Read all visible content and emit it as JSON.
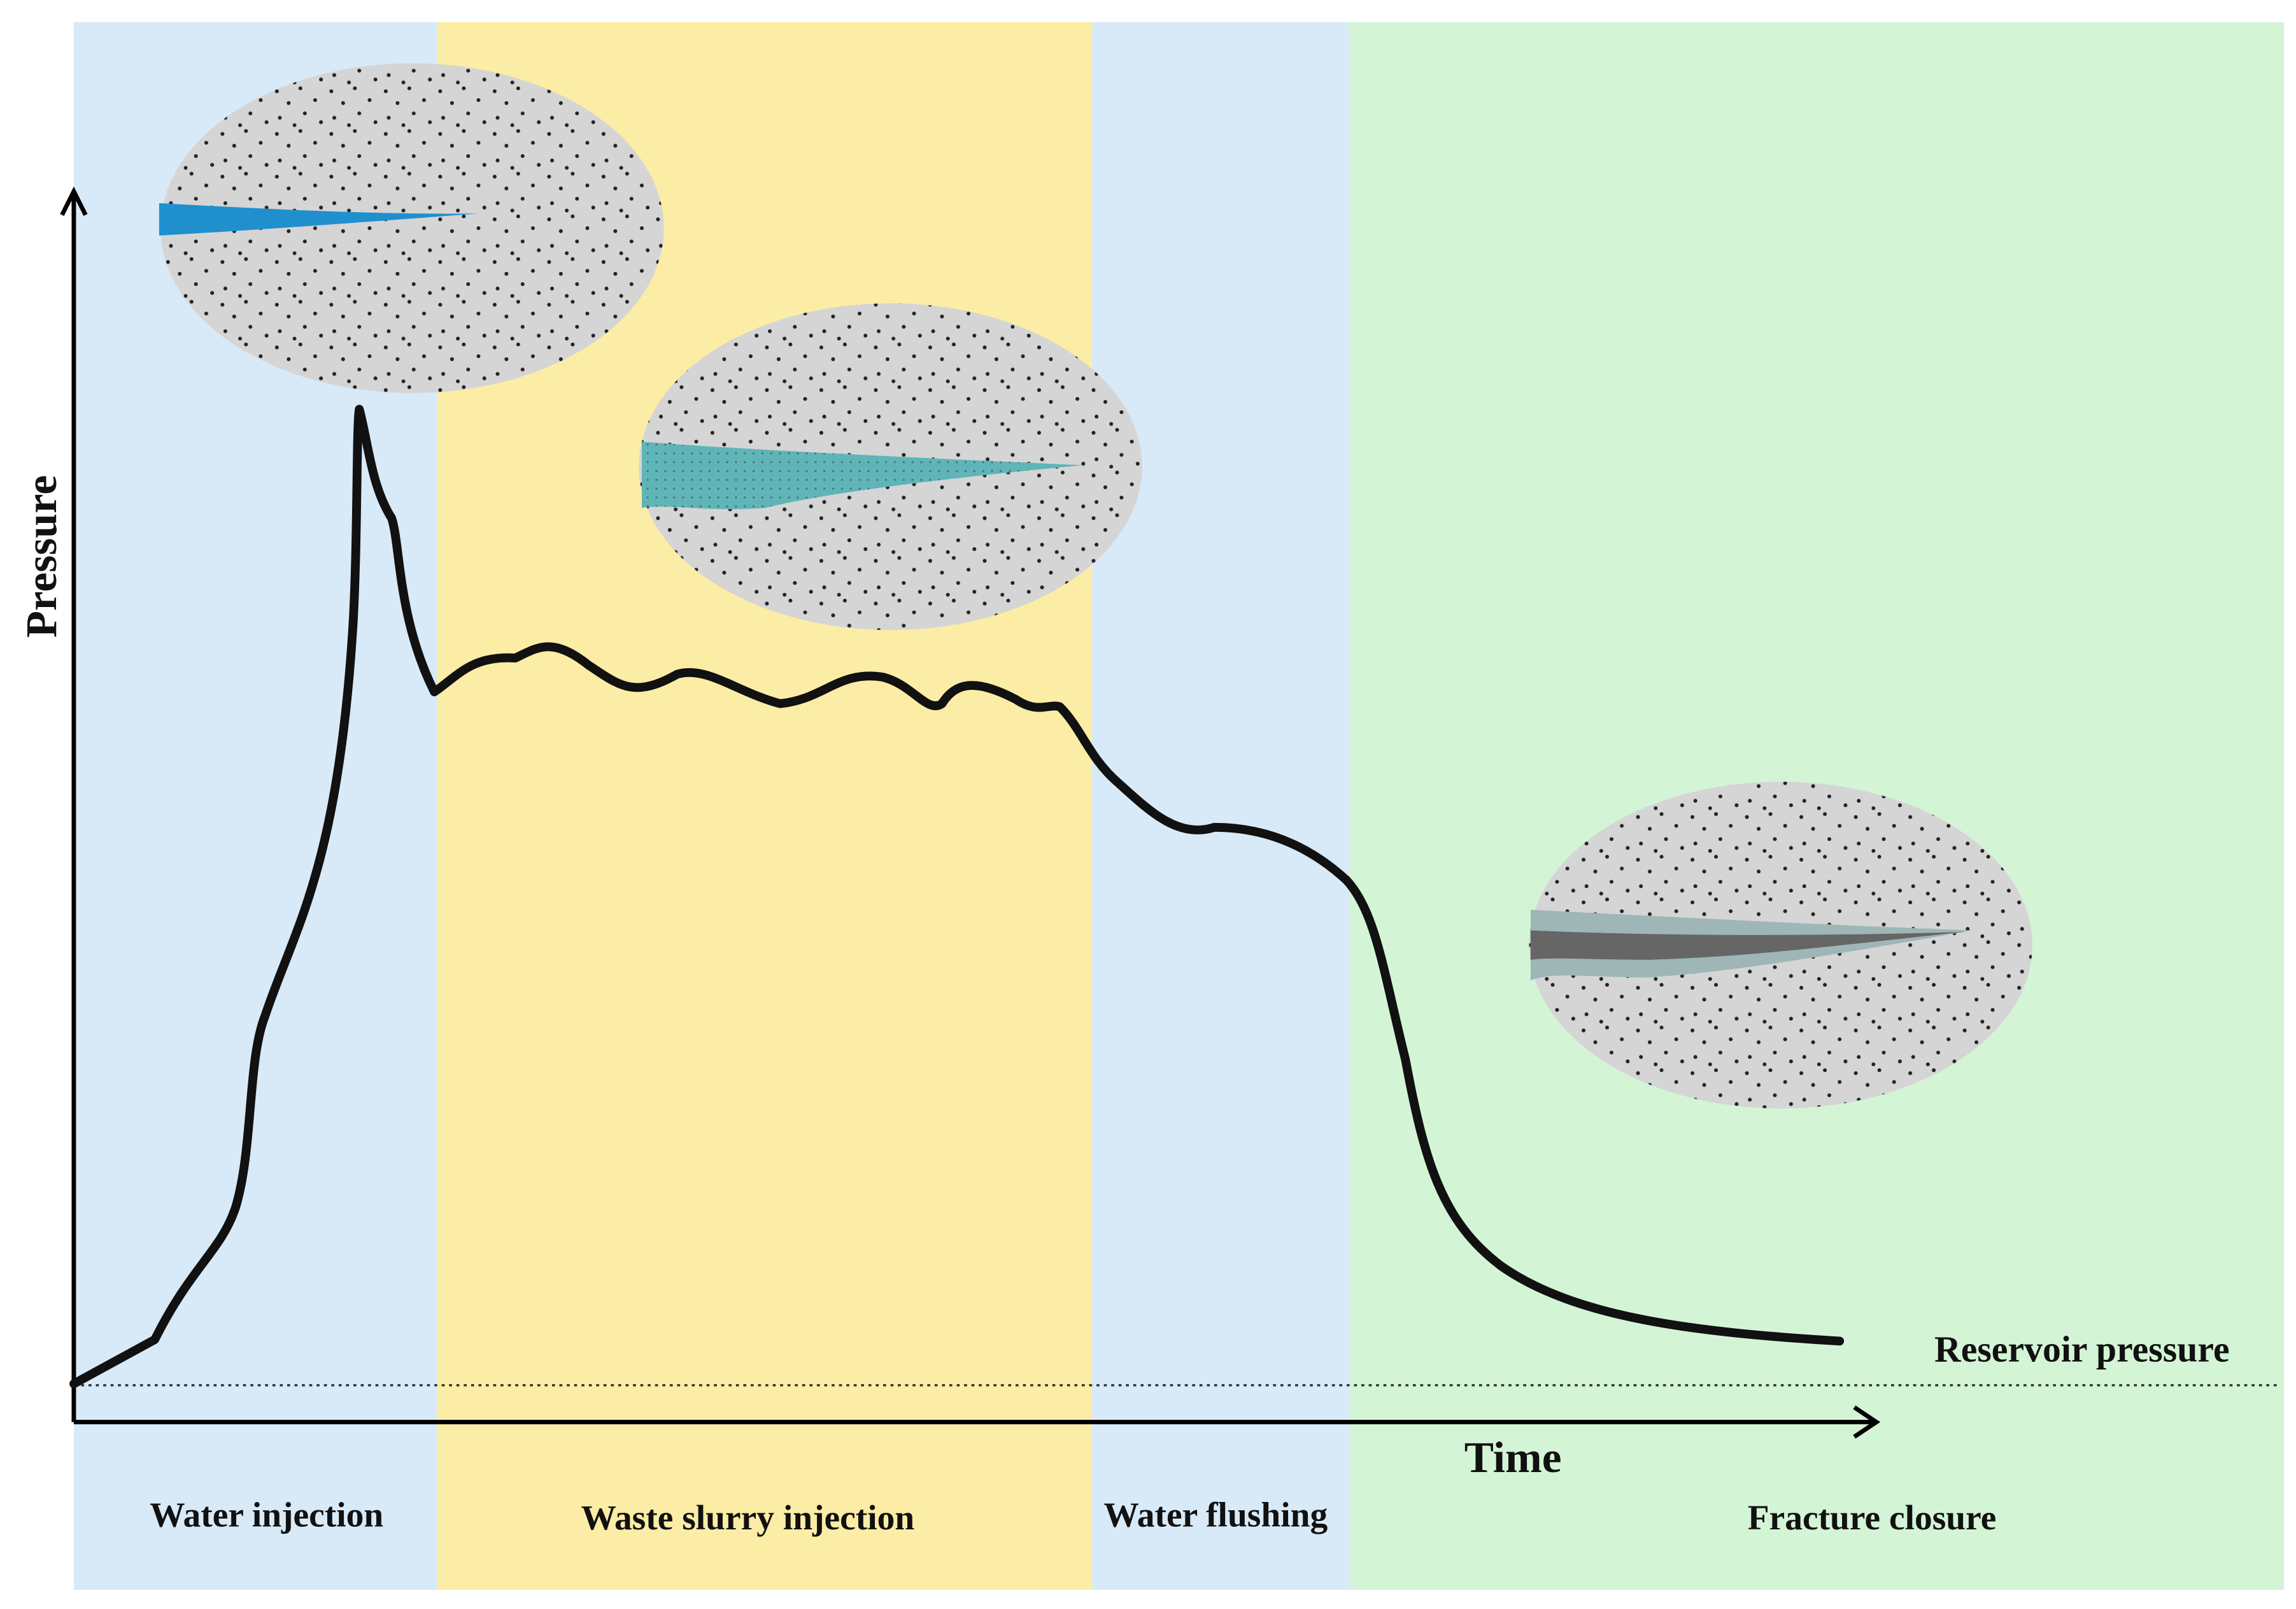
{
  "axes": {
    "y_label": "Pressure",
    "x_label": "Time"
  },
  "reference_line": {
    "label": "Reservoir pressure"
  },
  "phases": [
    {
      "label": "Water injection"
    },
    {
      "label": "Waste slurry injection"
    },
    {
      "label": "Water flushing"
    },
    {
      "label": "Fracture closure"
    }
  ]
}
